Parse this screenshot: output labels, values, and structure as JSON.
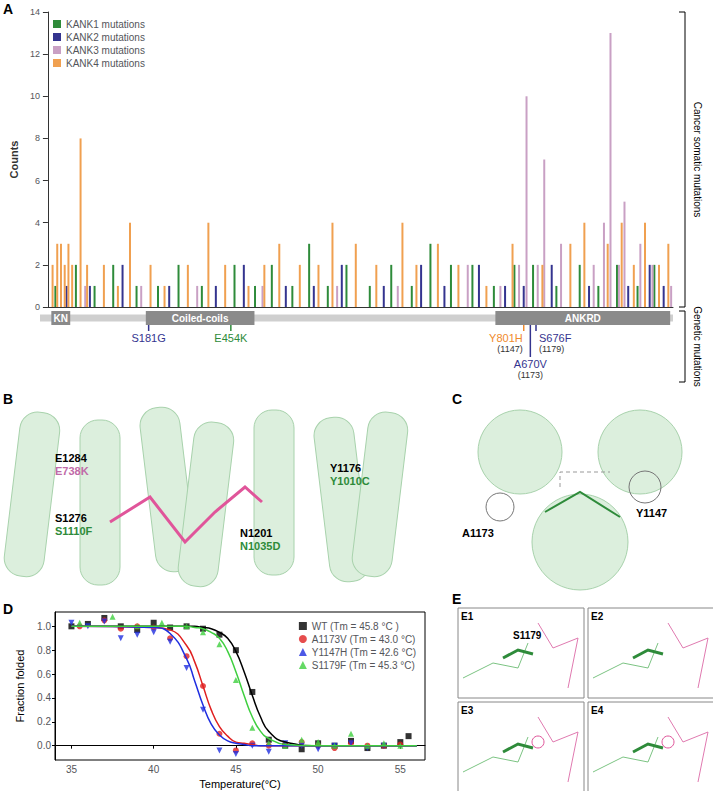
{
  "chart_data": [
    {
      "panel": "A",
      "type": "bar",
      "ylabel": "Counts",
      "xlim": [
        0,
        670
      ],
      "xticks": [],
      "ylim": [
        0,
        14
      ],
      "yticks": [
        0,
        2,
        4,
        6,
        8,
        10,
        12,
        14
      ],
      "tick_labels": "y",
      "legend": "upper left",
      "series": [
        {
          "name": "KANK1 mutations",
          "color": "#2e8b3a",
          "x": [
            8,
            30,
            50,
            70,
            95,
            118,
            140,
            165,
            200,
            222,
            240,
            262,
            280,
            300,
            320,
            345,
            368,
            390,
            410,
            432,
            455,
            478,
            500,
            520,
            545,
            570,
            590,
            610,
            632,
            650
          ],
          "values": [
            1,
            2,
            1,
            2,
            1,
            1,
            2,
            1,
            2,
            1,
            2,
            1,
            3,
            1,
            2,
            1,
            2,
            1,
            3,
            2,
            2,
            1,
            2,
            2,
            1,
            2,
            1,
            2,
            1,
            2
          ]
        },
        {
          "name": "KANK2 mutations",
          "color": "#34348f",
          "x": [
            20,
            45,
            80,
            130,
            180,
            210,
            255,
            285,
            315,
            360,
            400,
            425,
            462,
            490,
            510,
            540,
            580,
            622,
            645,
            660
          ],
          "values": [
            1,
            1,
            2,
            1,
            1,
            2,
            1,
            1,
            2,
            1,
            2,
            1,
            2,
            1,
            1,
            2,
            1,
            1,
            2,
            1
          ]
        },
        {
          "name": "KANK3 mutations",
          "color": "#c9a0c4",
          "x": [
            40,
            100,
            160,
            230,
            310,
            375,
            450,
            485,
            505,
            513,
            525,
            532,
            550,
            585,
            596,
            603,
            612,
            618,
            635,
            648,
            668
          ],
          "values": [
            1,
            1,
            1,
            1,
            1,
            1,
            2,
            1,
            2,
            10,
            2,
            7,
            3,
            2,
            4,
            13,
            2,
            5,
            3,
            2,
            1
          ]
        },
        {
          "name": "KANK4 mutations",
          "color": "#f0a050",
          "x": [
            5,
            10,
            14,
            18,
            22,
            26,
            35,
            42,
            60,
            75,
            88,
            110,
            125,
            150,
            172,
            190,
            215,
            232,
            248,
            270,
            290,
            305,
            330,
            352,
            380,
            395,
            418,
            440,
            470,
            498,
            530,
            560,
            575,
            600,
            615,
            628,
            640,
            655,
            665
          ],
          "values": [
            2,
            3,
            3,
            2,
            3,
            2,
            8,
            2,
            2,
            1,
            4,
            2,
            1,
            2,
            4,
            2,
            1,
            2,
            3,
            2,
            2,
            4,
            3,
            2,
            4,
            2,
            3,
            2,
            1,
            3,
            2,
            3,
            4,
            3,
            4,
            2,
            4,
            2,
            3
          ]
        }
      ],
      "domains": [
        {
          "name": "KN",
          "start": 12,
          "end": 32
        },
        {
          "name": "Coiled-coils",
          "start": 112,
          "end": 227
        },
        {
          "name": "ANKRD",
          "start": 482,
          "end": 667
        }
      ],
      "genetic_mutations": [
        {
          "label": "S181G",
          "position": 115,
          "color": "#34348f"
        },
        {
          "label": "E454K",
          "position": 202,
          "color": "#2e8b3a"
        },
        {
          "label": "Y801H",
          "position": 512,
          "color": "#f08a2c",
          "equivalent": "(1147)"
        },
        {
          "label": "S676F",
          "position": 525,
          "color": "#34348f",
          "equivalent": "(1179)"
        },
        {
          "label": "A670V",
          "position": 519,
          "color": "#34348f",
          "equivalent": "(1173)"
        }
      ],
      "annotations": [
        "Cancer somatic mutations",
        "Genetic mutations"
      ]
    },
    {
      "panel": "D",
      "type": "scatter",
      "xlabel": "Temperature(°C)",
      "ylabel": "Fraction folded",
      "xlim": [
        34,
        56.5
      ],
      "xticks": [
        35,
        40,
        45,
        50,
        55
      ],
      "ylim": [
        -0.12,
        1.12
      ],
      "yticks": [
        {
          "value": 0,
          "label": "0.0"
        },
        0.2,
        0.4,
        0.6,
        0.8,
        {
          "value": 1,
          "label": "1.0"
        }
      ],
      "legend": "upper right",
      "fit_x": [
        35,
        40,
        41,
        42,
        42.5,
        43,
        43.5,
        44,
        44.5,
        45,
        45.5,
        46,
        46.5,
        47,
        48,
        50,
        56
      ],
      "series": [
        {
          "name": "WT (Tm = 45.8 °C )",
          "color": "#000000",
          "marker": "square",
          "x": [
            35,
            36,
            37,
            38,
            39,
            40,
            41,
            42,
            43,
            44,
            45,
            46,
            47,
            48,
            49,
            50,
            51,
            52,
            53,
            54,
            55,
            55.5
          ],
          "values": [
            1.0,
            1.02,
            1.07,
            1.0,
            0.97,
            1.03,
            0.99,
            1.0,
            0.98,
            0.93,
            0.8,
            0.45,
            0.05,
            0.0,
            -0.03,
            0.02,
            0.0,
            0.04,
            -0.02,
            0.0,
            0.03,
            0.08
          ],
          "fit": [
            1,
            1,
            1,
            1,
            1,
            0.99,
            0.98,
            0.95,
            0.9,
            0.79,
            0.62,
            0.42,
            0.24,
            0.12,
            0.03,
            0,
            0
          ]
        },
        {
          "name": "A1173V (Tm = 43.0 °C)",
          "color": "#e02020",
          "marker": "circle",
          "x": [
            35.5,
            37,
            38,
            39,
            40,
            41,
            42,
            43,
            44,
            45,
            46,
            47,
            48,
            49,
            50,
            51,
            52,
            53,
            54,
            55
          ],
          "values": [
            1.0,
            1.05,
            0.98,
            1.0,
            0.99,
            0.9,
            0.75,
            0.5,
            0.1,
            -0.04,
            0.02,
            0.0,
            0.01,
            0.03,
            0.0,
            -0.02,
            0.02,
            0.0,
            0.0,
            0.01
          ],
          "fit": [
            1,
            0.99,
            0.97,
            0.84,
            0.7,
            0.5,
            0.3,
            0.16,
            0.08,
            0.03,
            0.02,
            0.01,
            0,
            0,
            0,
            0,
            0
          ]
        },
        {
          "name": "Y1147H (Tm = 42.6 °C)",
          "color": "#1f2ee0",
          "marker": "triangle-down",
          "x": [
            35,
            36,
            37,
            38,
            39,
            40,
            41,
            42,
            43,
            44,
            45,
            46,
            47,
            48,
            49,
            50,
            51,
            52,
            53,
            54
          ],
          "values": [
            1.03,
            1.0,
            1.04,
            0.9,
            0.93,
            0.95,
            0.87,
            0.65,
            0.3,
            -0.04,
            -0.07,
            0.0,
            -0.05,
            0.02,
            0.0,
            -0.03,
            0.0,
            0.02,
            -0.02,
            0.0
          ],
          "fit": [
            1,
            0.99,
            0.94,
            0.73,
            0.54,
            0.34,
            0.18,
            0.09,
            0.04,
            0.02,
            0.01,
            0,
            0,
            0,
            0,
            0,
            0
          ]
        },
        {
          "name": "S1179F (Tm = 45.3 °C)",
          "color": "#3fcf3f",
          "marker": "triangle-up",
          "x": [
            35.5,
            37.5,
            39,
            40.5,
            42,
            43,
            44,
            45,
            46,
            47,
            48,
            49,
            50,
            51,
            52,
            53,
            54,
            55
          ],
          "values": [
            1.03,
            1.08,
            1.0,
            1.03,
            1.0,
            0.95,
            0.85,
            0.55,
            0.15,
            0.02,
            0.0,
            0.05,
            0.03,
            0.0,
            0.1,
            0.0,
            0.02,
            0.0
          ],
          "fit": [
            1,
            1,
            1,
            1,
            0.99,
            0.98,
            0.95,
            0.9,
            0.79,
            0.62,
            0.42,
            0.24,
            0.12,
            0.06,
            0.01,
            0,
            0
          ]
        }
      ]
    }
  ],
  "structure_panels": {
    "B": {
      "panel": "B",
      "labels": [
        {
          "residue": "E1284",
          "mutation": "E738K",
          "mutation_color": "#c06aa8"
        },
        {
          "residue": "S1276",
          "mutation": "S1110F",
          "mutation_color": "#2e8b3a"
        },
        {
          "residue": "N1201",
          "mutation": "N1035D",
          "mutation_color": "#2e8b3a"
        },
        {
          "residue": "Y1176",
          "mutation": "Y1010C",
          "mutation_color": "#2e8b3a"
        }
      ]
    },
    "C": {
      "panel": "C",
      "labels": [
        "A1173",
        "Y1147"
      ]
    },
    "E": {
      "panel": "E",
      "subpanels": [
        "E1",
        "E2",
        "E3",
        "E4"
      ],
      "label": "S1179"
    }
  }
}
